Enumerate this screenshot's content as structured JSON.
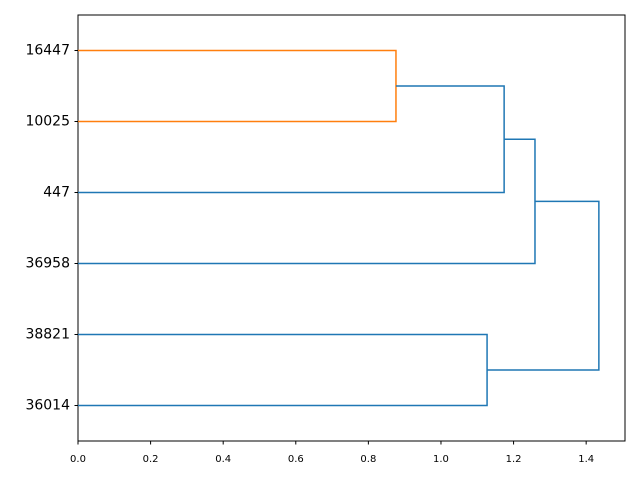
{
  "chart_data": {
    "type": "dendrogram",
    "leaves": [
      "16447",
      "10025",
      "447",
      "36958",
      "38821",
      "36014"
    ],
    "merges": [
      {
        "left": 0,
        "right": 1,
        "height": 0.876,
        "color": "#ff7f0e"
      },
      {
        "left": 6,
        "right": 2,
        "height": 1.174,
        "color": "#1f77b4"
      },
      {
        "left": 7,
        "right": 3,
        "height": 1.259,
        "color": "#1f77b4"
      },
      {
        "left": 4,
        "right": 5,
        "height": 1.127,
        "color": "#1f77b4"
      },
      {
        "left": 8,
        "right": 9,
        "height": 1.435,
        "color": "#1f77b4"
      }
    ],
    "xlim": [
      0,
      1.507
    ],
    "xticks": [
      {
        "value": 0,
        "label": "0.0"
      },
      {
        "value": 0.2,
        "label": "0.2"
      },
      {
        "value": 0.4,
        "label": "0.4"
      },
      {
        "value": 0.6,
        "label": "0.6"
      },
      {
        "value": 0.8,
        "label": "0.8"
      },
      {
        "value": 1,
        "label": "1.0"
      },
      {
        "value": 1.2,
        "label": "1.2"
      },
      {
        "value": 1.4,
        "label": "1.4"
      }
    ]
  }
}
